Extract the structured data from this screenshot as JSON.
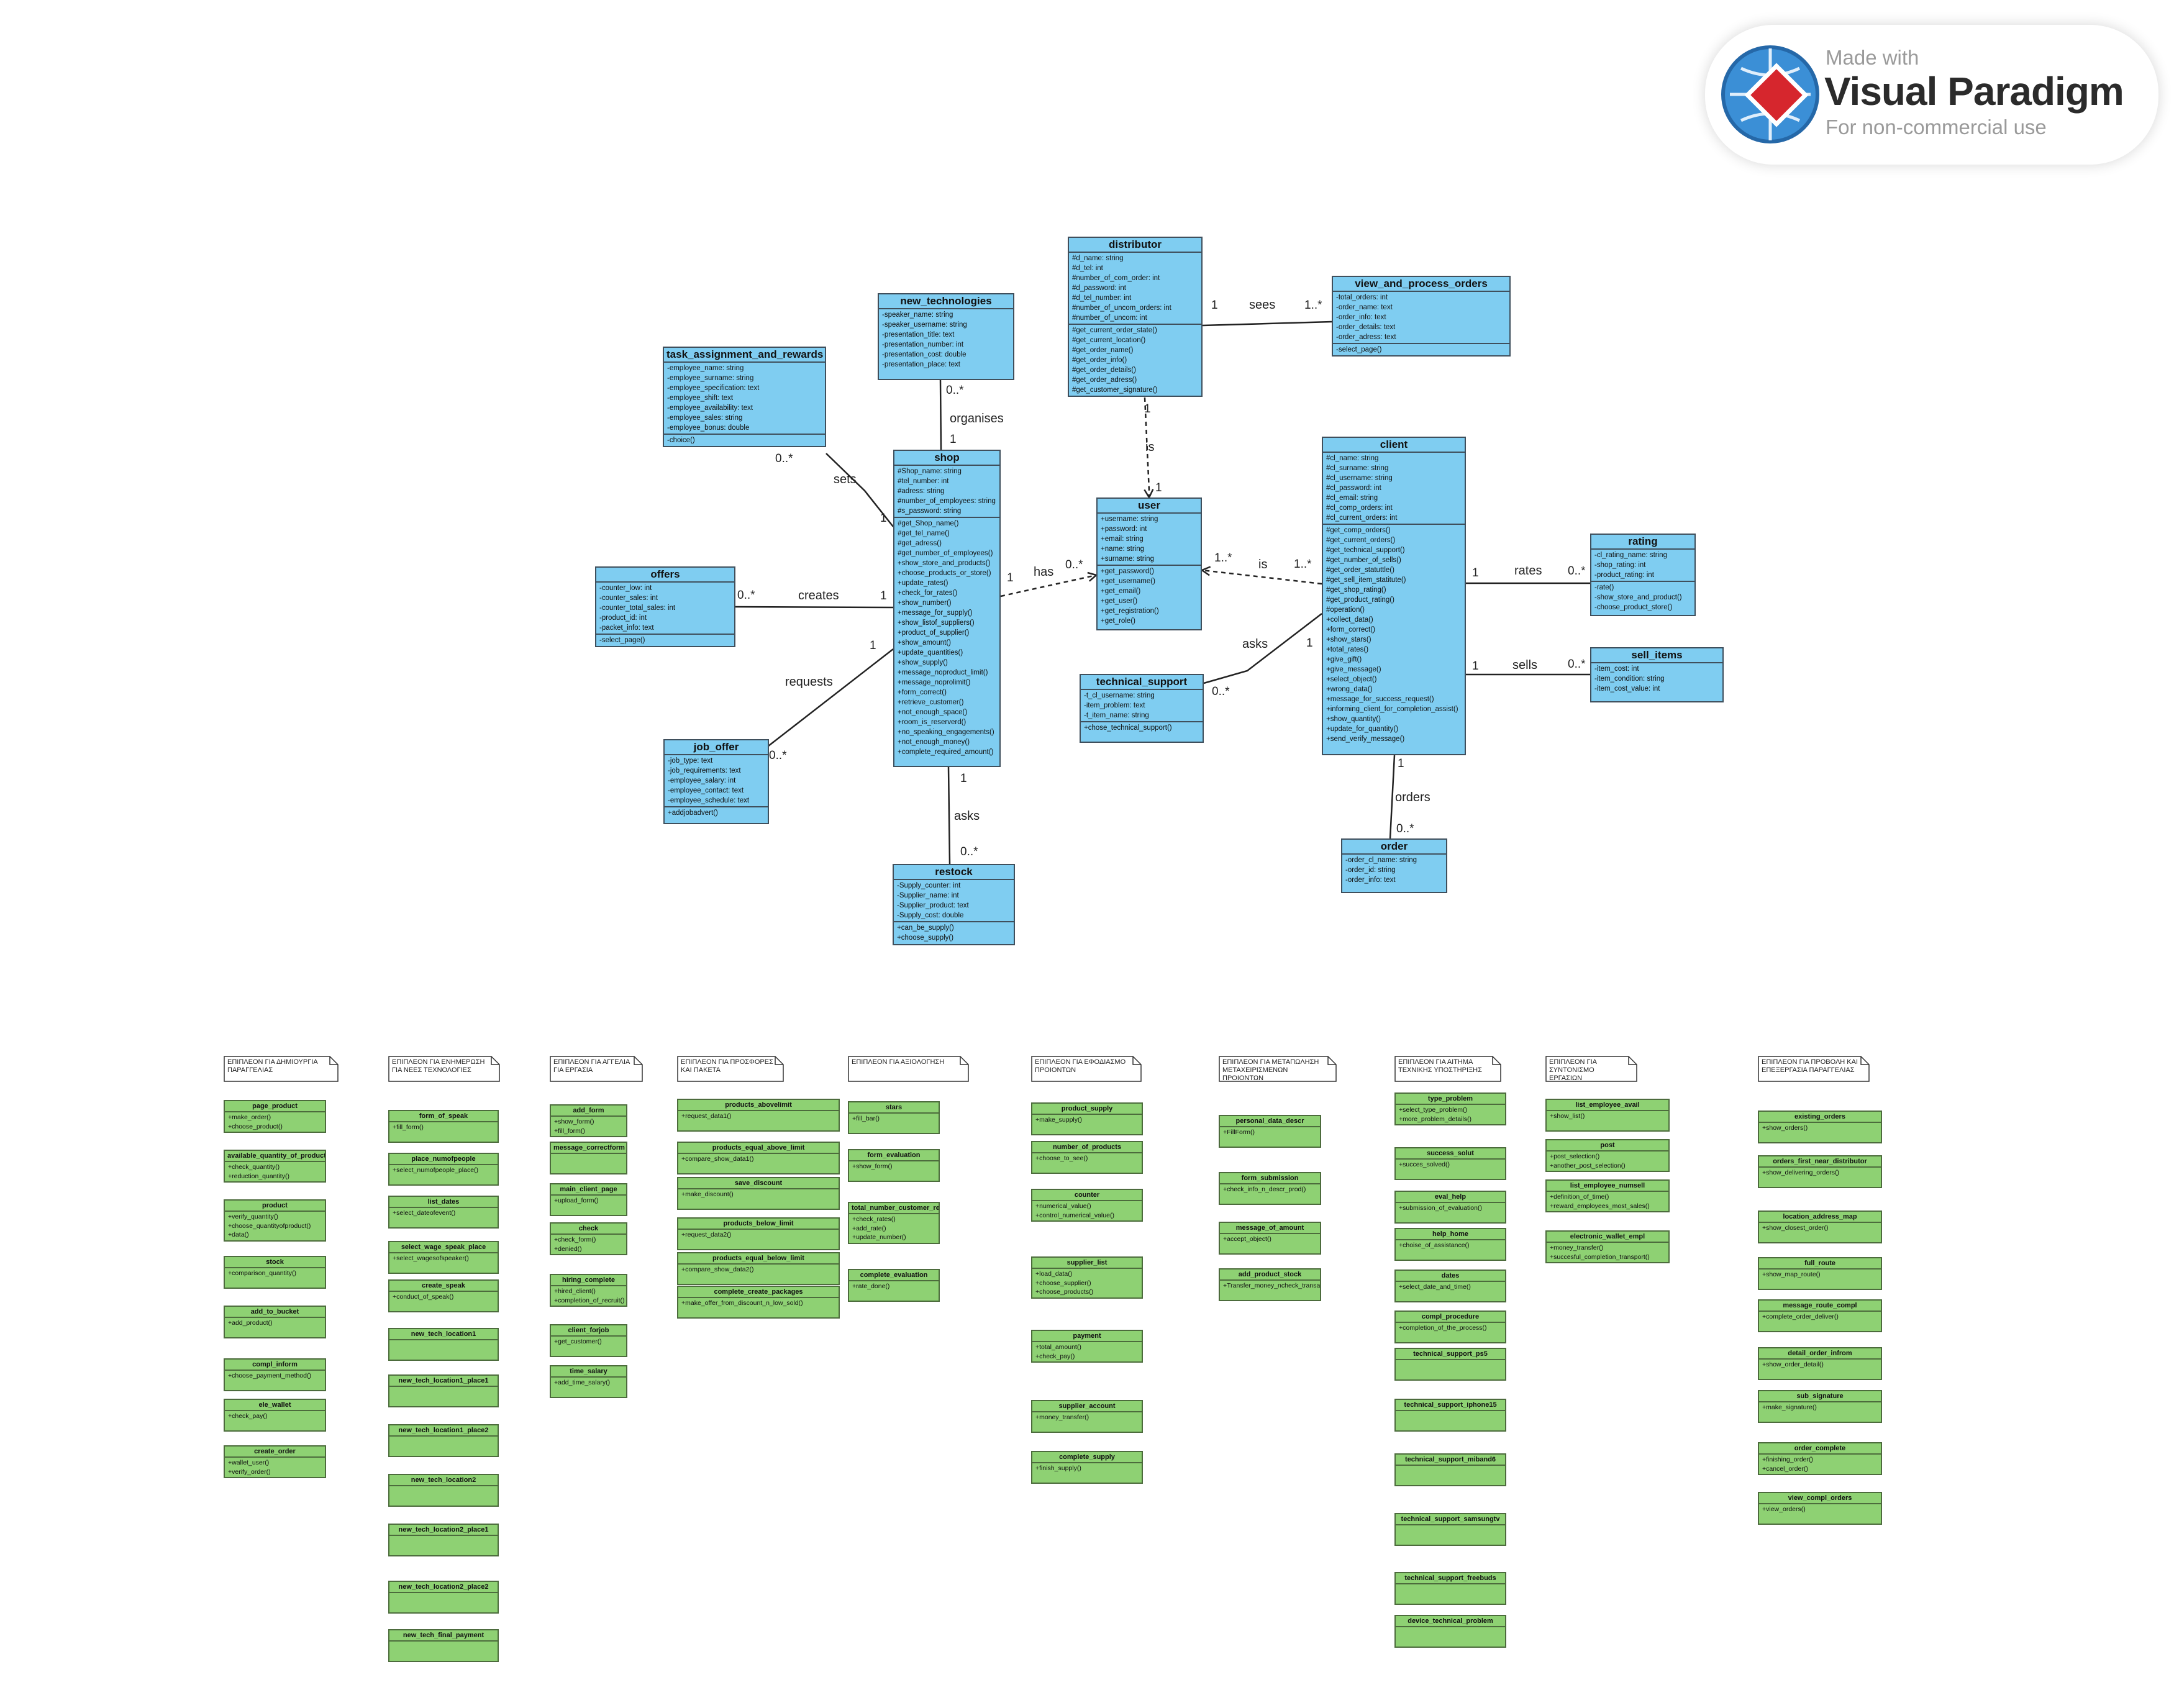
{
  "watermark": {
    "made_with": "Made with",
    "product": "Visual Paradigm",
    "usage": "For non-commercial use"
  },
  "colors": {
    "class_fill": "#7fcdf1",
    "sub_class_fill": "#8ed173",
    "border": "#3f4f5c",
    "edge": "#222222"
  },
  "classes": {
    "distributor": {
      "name": "distributor",
      "attributes": [
        "#d_name: string",
        "#d_tel: int",
        "#number_of_com_order: int",
        "#d_password: int",
        "#d_tel_number: int",
        "#number_of_uncom_orders: int",
        "#number_of_uncom: int"
      ],
      "methods": [
        "#get_current_order_state()",
        "#get_current_location()",
        "#get_order_name()",
        "#get_order_info()",
        "#get_order_details()",
        "#get_order_adress()",
        "#get_customer_signature()"
      ]
    },
    "view_and_process_orders": {
      "name": "view_and_process_orders",
      "attributes": [
        "-total_orders: int",
        "-order_name: text",
        "-order_info: text",
        "-order_details: text",
        "-order_adress: text"
      ],
      "methods": [
        "-select_page()"
      ]
    },
    "new_technologies": {
      "name": "new_technologies",
      "attributes": [
        "-speaker_name: string",
        "-speaker_username: string",
        "-presentation_title: text",
        "-presentation_number: int",
        "-presentation_cost: double",
        "-presentation_place: text"
      ],
      "methods": []
    },
    "task_assignment_and_rewards": {
      "name": "task_assignment_and_rewards",
      "attributes": [
        "-employee_name: string",
        "-employee_surname: string",
        "-employee_specification: text",
        "-employee_shift: text",
        "-employee_availability: text",
        "-employee_sales: string",
        "-employee_bonus: double"
      ],
      "methods": [
        "-choice()"
      ]
    },
    "shop": {
      "name": "shop",
      "attributes": [
        "#Shop_name: string",
        "#tel_number: int",
        "#adress: string",
        "#number_of_employees: string",
        "#s_password: string"
      ],
      "methods": [
        "#get_Shop_name()",
        "#get_tel_name()",
        "#get_adress()",
        "#get_number_of_employees()",
        "+show_store_and_products()",
        "+choose_products_or_store()",
        "+update_rates()",
        "+check_for_rates()",
        "+show_number()",
        "+message_for_supply()",
        "+show_listof_suppliers()",
        "+product_of_supplier()",
        "+show_amount()",
        "+update_quantities()",
        "+show_supply()",
        "+message_noproduct_limit()",
        "+message_noprolimit()",
        "+form_correct()",
        "+retrieve_customer()",
        "+not_enough_space()",
        "+room_is_reserverd()",
        "+no_speaking_engagements()",
        "+not_enough_money()",
        "+complete_required_amount()"
      ]
    },
    "user": {
      "name": "user",
      "attributes": [
        "+username: string",
        "+password: int",
        "+email: string",
        "+name: string",
        "+surname: string"
      ],
      "methods": [
        "+get_password()",
        "+get_username()",
        "+get_email()",
        "+get_user()",
        "+get_registration()",
        "+get_role()"
      ]
    },
    "client": {
      "name": "client",
      "attributes": [
        "#cl_name: string",
        "#cl_surname: string",
        "#cl_username: string",
        "#cl_password: int",
        "#cl_email: string",
        "#cl_comp_orders: int",
        "#cl_current_orders: int"
      ],
      "methods": [
        "#get_comp_orders()",
        "#get_current_orders()",
        "#get_technical_support()",
        "#get_number_of_sells()",
        "#get_order_statuttle()",
        "#get_sell_item_statitute()",
        "#get_shop_rating()",
        "#get_product_rating()",
        "#operation()",
        "+collect_data()",
        "+form_correct()",
        "+show_stars()",
        "+total_rates()",
        "+give_gift()",
        "+give_message()",
        "+select_object()",
        "+wrong_data()",
        "+message_for_success_request()",
        "+informing_client_for_completion_assist()",
        "+show_quantity()",
        "+update_for_quantity()",
        "+send_verify_message()"
      ]
    },
    "rating": {
      "name": "rating",
      "attributes": [
        "-cl_rating_name: string",
        "-shop_rating: int",
        "-product_rating: int"
      ],
      "methods": [
        "-rate()",
        "-show_store_and_product()",
        "-choose_product_store()"
      ]
    },
    "sell_items": {
      "name": "sell_items",
      "attributes": [
        "-item_cost: int",
        "-item_condition: string",
        "-item_cost_value: int"
      ],
      "methods": []
    },
    "offers": {
      "name": "offers",
      "attributes": [
        "-counter_low: int",
        "-counter_sales: int",
        "-counter_total_sales: int",
        "-product_id: int",
        "-packet_info: text"
      ],
      "methods": [
        "-select_page()"
      ]
    },
    "technical_support": {
      "name": "technical_support",
      "attributes": [
        "-t_cl_username: string",
        "-item_problem: text",
        "-t_item_name: string"
      ],
      "methods": [
        "+chose_technical_support()"
      ]
    },
    "job_offer": {
      "name": "job_offer",
      "attributes": [
        "-job_type: text",
        "-job_requirements: text",
        "-employee_salary: int",
        "-employee_contact: text",
        "-employee_schedule: text"
      ],
      "methods": [
        "+addjobadvert()"
      ]
    },
    "restock": {
      "name": "restock",
      "attributes": [
        "-Supply_counter: int",
        "-Supplier_name: int",
        "-Supplier_product: text",
        "-Supply_cost: double"
      ],
      "methods": [
        "+can_be_supply()",
        "+choose_supply()"
      ]
    },
    "order": {
      "name": "order",
      "attributes": [
        "-order_cl_name: string",
        "-order_id: string",
        "-order_info: text"
      ],
      "methods": []
    }
  },
  "edges": {
    "distributor_view": {
      "label": "sees",
      "m1": "1",
      "m2": "1..*"
    },
    "distributor_user": {
      "label": "is",
      "m1": "1",
      "m2": "1"
    },
    "newtech_shop": {
      "label": "organises",
      "m1": "0..*",
      "m2": "1"
    },
    "task_shop": {
      "label": "sets",
      "m1": "0..*",
      "m2": "1"
    },
    "shop_user": {
      "label": "has",
      "m1": "1",
      "m2": "0..*"
    },
    "client_user": {
      "label": "is",
      "m1": "1..*",
      "m2": "1..*"
    },
    "offers_shop": {
      "label": "creates",
      "m1": "0..*",
      "m2": "1"
    },
    "job_shop": {
      "label": "requests",
      "m1": "1",
      "m2": "0..*"
    },
    "shop_restock": {
      "label": "asks",
      "m1": "1",
      "m2": "0..*"
    },
    "client_rating": {
      "label": "rates",
      "m1": "1",
      "m2": "0..*"
    },
    "client_sell": {
      "label": "sells",
      "m1": "1",
      "m2": "0..*"
    },
    "tech_client": {
      "label": "asks",
      "m1": "0..*",
      "m2": "1"
    },
    "client_order": {
      "label": "orders",
      "m1": "1",
      "m2": "0..*"
    }
  },
  "bottom_columns": [
    {
      "note": "ΕΠΙΠΛΕΟΝ ΓΙΑ ΔΗΜΙΟΥΡΓΙΑ ΠΑΡΑΓΓΕΛΙΑΣ",
      "classes": [
        {
          "name": "page_product",
          "methods": [
            "+make_order()",
            "+choose_product()"
          ]
        },
        {
          "name": "available_quantity_of_product",
          "methods": [
            "+check_quantity()",
            "+reduction_quantity()"
          ]
        },
        {
          "name": "product",
          "methods": [
            "+verify_quantity()",
            "+choose_quantityofproduct()",
            "+data()"
          ]
        },
        {
          "name": "stock",
          "methods": [
            "+comparison_quantity()"
          ]
        },
        {
          "name": "add_to_bucket",
          "methods": [
            "+add_product()"
          ]
        },
        {
          "name": "compl_inform",
          "methods": [
            "+choose_payment_method()"
          ]
        },
        {
          "name": "ele_wallet",
          "methods": [
            "+check_pay()"
          ]
        },
        {
          "name": "create_order",
          "methods": [
            "+wallet_user()",
            "+verify_order()"
          ]
        }
      ]
    },
    {
      "note": "ΕΠΙΠΛΕΟΝ ΓΙΑ ΕΝΗΜΕΡΩΣΗ ΓΙΑ ΝΕΕΣ ΤΕΧΝΟΛΟΓΙΕΣ",
      "classes": [
        {
          "name": "form_of_speak",
          "methods": [
            "+fill_form()"
          ]
        },
        {
          "name": "place_numofpeople",
          "methods": [
            "+select_numofpeople_place()"
          ]
        },
        {
          "name": "list_dates",
          "methods": [
            "+select_dateofevent()"
          ]
        },
        {
          "name": "select_wage_speak_place",
          "methods": [
            "+select_wagesofspeaker()"
          ]
        },
        {
          "name": "create_speak",
          "methods": [
            "+conduct_of_speak()"
          ]
        },
        {
          "name": "new_tech_location1",
          "methods": []
        },
        {
          "name": "new_tech_location1_place1",
          "methods": []
        },
        {
          "name": "new_tech_location1_place2",
          "methods": []
        },
        {
          "name": "new_tech_location2",
          "methods": []
        },
        {
          "name": "new_tech_location2_place1",
          "methods": []
        },
        {
          "name": "new_tech_location2_place2",
          "methods": []
        },
        {
          "name": "new_tech_final_payment",
          "methods": []
        }
      ]
    },
    {
      "note": "ΕΠΙΠΛΕΟΝ ΓΙΑ ΑΓΓΕΛΙΑ ΓΙΑ ΕΡΓΑΣΙΑ",
      "classes": [
        {
          "name": "add_form",
          "methods": [
            "+show_form()",
            "+fill_form()"
          ]
        },
        {
          "name": "message_correctform",
          "methods": []
        },
        {
          "name": "main_client_page",
          "methods": [
            "+upload_form()"
          ]
        },
        {
          "name": "check",
          "methods": [
            "+check_form()",
            "+denied()"
          ]
        },
        {
          "name": "hiring_complete",
          "methods": [
            "+hired_client()",
            "+completion_of_recruit()"
          ]
        },
        {
          "name": "client_forjob",
          "methods": [
            "+get_customer()"
          ]
        },
        {
          "name": "time_salary",
          "methods": [
            "+add_time_salary()"
          ]
        }
      ]
    },
    {
      "note": "ΕΠΙΠΛΕΟΝ ΓΙΑ ΠΡΟΣΦΟΡΕΣ ΚΑΙ ΠΑΚΕΤΑ",
      "classes": [
        {
          "name": "products_abovelimit",
          "methods": [
            "+request_data1()"
          ]
        },
        {
          "name": "products_equal_above_limit",
          "methods": [
            "+compare_show_data1()"
          ]
        },
        {
          "name": "save_discount",
          "methods": [
            "+make_discount()"
          ]
        },
        {
          "name": "products_below_limit",
          "methods": [
            "+request_data2()"
          ]
        },
        {
          "name": "products_equal_below_limit",
          "methods": [
            "+compare_show_data2()"
          ]
        },
        {
          "name": "complete_create_packages",
          "methods": [
            "+make_offer_from_discount_n_low_sold()"
          ]
        }
      ]
    },
    {
      "note": "ΕΠΙΠΛΕΟΝ ΓΙΑ ΑΞΙΟΛΟΓΗΣΗ",
      "classes": [
        {
          "name": "stars",
          "methods": [
            "+fill_bar()"
          ]
        },
        {
          "name": "form_evaluation",
          "methods": [
            "+show_form()"
          ]
        },
        {
          "name": "total_number_customer_reviews",
          "methods": [
            "+check_rates()",
            "+add_rate()",
            "+update_number()"
          ]
        },
        {
          "name": "complete_evaluation",
          "methods": [
            "+rate_done()"
          ]
        }
      ]
    },
    {
      "note": "ΕΠΙΠΛΕΟΝ ΓΙΑ ΕΦΟΔΙΑΣΜΟ ΠΡΟΙΟΝΤΩΝ",
      "classes": [
        {
          "name": "product_supply",
          "methods": [
            "+make_supply()"
          ]
        },
        {
          "name": "number_of_products",
          "methods": [
            "+choose_to_see()"
          ]
        },
        {
          "name": "counter",
          "methods": [
            "+numerical_value()",
            "+control_numerical_value()"
          ]
        },
        {
          "name": "supplier_list",
          "methods": [
            "+load_data()",
            "+choose_supplier()",
            "+choose_products()"
          ]
        },
        {
          "name": "payment",
          "methods": [
            "+total_amount()",
            "+check_pay()"
          ]
        },
        {
          "name": "supplier_account",
          "methods": [
            "+money_transfer()"
          ]
        },
        {
          "name": "complete_supply",
          "methods": [
            "+finish_supply()"
          ]
        }
      ]
    },
    {
      "note": "ΕΠΙΠΛΕΟΝ ΓΙΑ ΜΕΤΑΠΩΛΗΣΗ ΜΕΤΑΧΕΙΡΙΣΜΕΝΩΝ ΠΡΟΙΟΝΤΩΝ",
      "classes": [
        {
          "name": "personal_data_descr",
          "methods": [
            "+FillForm()"
          ]
        },
        {
          "name": "form_submission",
          "methods": [
            "+check_info_n_descr_prod()"
          ]
        },
        {
          "name": "message_of_amount",
          "methods": [
            "+accept_object()"
          ]
        },
        {
          "name": "add_product_stock",
          "methods": [
            "+Transfer_money_ncheck_transaction()"
          ]
        }
      ]
    },
    {
      "note": "ΕΠΙΠΛΕΟΝ ΓΙΑ ΑΙΤΗΜΑ ΤΕΧΝΙΚΗΣ ΥΠΟΣΤΗΡΙΞΗΣ",
      "classes": [
        {
          "name": "type_problem",
          "methods": [
            "+select_type_problem()",
            "+more_problem_details()"
          ]
        },
        {
          "name": "success_solut",
          "methods": [
            "+succes_solved()"
          ]
        },
        {
          "name": "eval_help",
          "methods": [
            "+submission_of_evaluation()"
          ]
        },
        {
          "name": "help_home",
          "methods": [
            "+choise_of_assistance()"
          ]
        },
        {
          "name": "dates",
          "methods": [
            "+select_date_and_time()"
          ]
        },
        {
          "name": "compl_procedure",
          "methods": [
            "+completion_of_the_process()"
          ]
        },
        {
          "name": "technical_support_ps5",
          "methods": []
        },
        {
          "name": "technical_support_iphone15",
          "methods": []
        },
        {
          "name": "technical_support_miband6",
          "methods": []
        },
        {
          "name": "technical_support_samsungtv",
          "methods": []
        },
        {
          "name": "technical_support_freebuds",
          "methods": []
        },
        {
          "name": "device_technical_problem",
          "methods": []
        }
      ]
    },
    {
      "note": "ΕΠΙΠΛΕΟΝ ΓΙΑ ΣΥΝΤΟΝΙΣΜΟ ΕΡΓΑΣΙΩΝ",
      "classes": [
        {
          "name": "list_employee_avail",
          "methods": [
            "+show_list()"
          ]
        },
        {
          "name": "post",
          "methods": [
            "+post_selection()",
            "+another_post_selection()"
          ]
        },
        {
          "name": "list_employee_numsell",
          "methods": [
            "+definition_of_time()",
            "+reward_employees_most_sales()"
          ]
        },
        {
          "name": "electronic_wallet_empl",
          "methods": [
            "+money_transfer()",
            "+succesful_completion_transport()"
          ]
        }
      ]
    },
    {
      "note": "ΕΠΙΠΛΕΟΝ ΓΙΑ ΠΡΟΒΟΛΗ ΚΑΙ ΕΠΕΞΕΡΓΑΣΙΑ ΠΑΡΑΓΓΕΛΙΑΣ",
      "classes": [
        {
          "name": "existing_orders",
          "methods": [
            "+show_orders()"
          ]
        },
        {
          "name": "orders_first_near_distributor",
          "methods": [
            "+show_delivering_orders()"
          ]
        },
        {
          "name": "location_address_map",
          "methods": [
            "+show_closest_order()"
          ]
        },
        {
          "name": "full_route",
          "methods": [
            "+show_map_route()"
          ]
        },
        {
          "name": "message_route_compl",
          "methods": [
            "+complete_order_deliver()"
          ]
        },
        {
          "name": "detail_order_infrom",
          "methods": [
            "+show_order_detail()"
          ]
        },
        {
          "name": "sub_signature",
          "methods": [
            "+make_signature()"
          ]
        },
        {
          "name": "order_complete",
          "methods": [
            "+finishing_order()",
            "+cancel_order()"
          ]
        },
        {
          "name": "view_compl_orders",
          "methods": [
            "+view_orders()"
          ]
        }
      ]
    }
  ]
}
